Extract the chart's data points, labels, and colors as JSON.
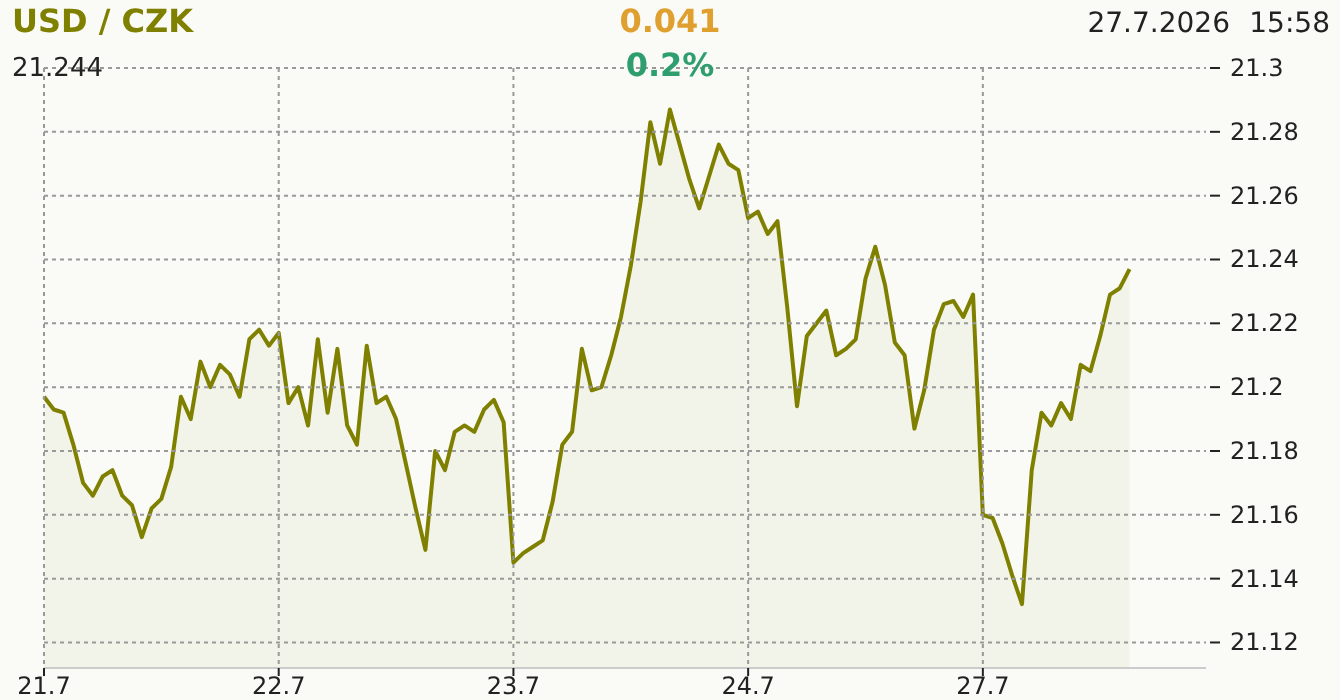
{
  "chart_data": {
    "type": "area",
    "title": "USD / CZK",
    "annotations": [
      "0.041",
      "0.2%",
      "27.7.2026",
      "21.244",
      "15:58"
    ],
    "categories": [
      "21.7",
      null,
      null,
      null,
      null,
      null,
      null,
      null,
      null,
      null,
      null,
      null,
      null,
      null,
      null,
      null,
      null,
      null,
      null,
      null,
      null,
      null,
      null,
      null,
      "22.7",
      null,
      null,
      null,
      null,
      null,
      null,
      null,
      null,
      null,
      null,
      null,
      null,
      null,
      null,
      null,
      null,
      null,
      null,
      null,
      null,
      null,
      null,
      null,
      "23.7",
      null,
      null,
      null,
      null,
      null,
      null,
      null,
      null,
      null,
      null,
      null,
      null,
      null,
      null,
      null,
      null,
      null,
      null,
      null,
      null,
      null,
      null,
      null,
      "24.7",
      null,
      null,
      null,
      null,
      null,
      null,
      null,
      null,
      null,
      null,
      null,
      null,
      null,
      null,
      null,
      null,
      null,
      null,
      null,
      null,
      null,
      null,
      null,
      "27.7",
      null,
      null,
      null,
      null,
      null,
      null,
      null,
      null,
      null,
      null,
      null,
      null,
      null,
      null,
      null,
      null,
      null,
      null,
      null,
      null,
      null,
      null
    ],
    "series": [
      {
        "color": "#808000",
        "values": [
          21.197,
          21.193,
          21.192,
          21.182,
          21.17,
          21.166,
          21.172,
          21.174,
          21.166,
          21.163,
          21.153,
          21.162,
          21.165,
          21.175,
          21.197,
          21.19,
          21.208,
          21.2,
          21.207,
          21.204,
          21.197,
          21.215,
          21.218,
          21.213,
          21.217,
          21.195,
          21.2,
          21.188,
          21.215,
          21.192,
          21.212,
          21.188,
          21.182,
          21.213,
          21.195,
          21.197,
          21.19,
          21.176,
          21.162,
          21.149,
          21.18,
          21.174,
          21.186,
          21.188,
          21.186,
          21.193,
          21.196,
          21.189,
          21.145,
          21.148,
          21.15,
          21.152,
          21.164,
          21.182,
          21.186,
          21.212,
          21.199,
          21.2,
          21.21,
          21.222,
          21.238,
          21.258,
          21.283,
          21.27,
          21.287,
          21.276,
          21.265,
          21.256,
          21.266,
          21.276,
          21.27,
          21.268,
          21.253,
          21.255,
          21.248,
          21.252,
          21.225,
          21.194,
          21.216,
          21.22,
          21.224,
          21.21,
          21.212,
          21.215,
          21.234,
          21.244,
          21.232,
          21.214,
          21.21,
          21.187,
          21.199,
          21.218,
          21.226,
          21.227,
          21.222,
          21.229,
          21.16,
          21.159,
          21.151,
          21.141,
          21.132,
          21.174,
          21.192,
          21.188,
          21.195,
          21.19,
          21.207,
          21.205,
          21.216,
          21.229,
          21.231,
          21.237,
          null,
          null,
          null,
          null,
          null,
          null,
          null
        ]
      }
    ],
    "ylim": [
      21.112,
      21.3
    ],
    "yticks": [
      21.12,
      21.14,
      21.16,
      21.18,
      21.2,
      21.22,
      21.24,
      21.26,
      21.28,
      21.3
    ],
    "grid": true
  }
}
